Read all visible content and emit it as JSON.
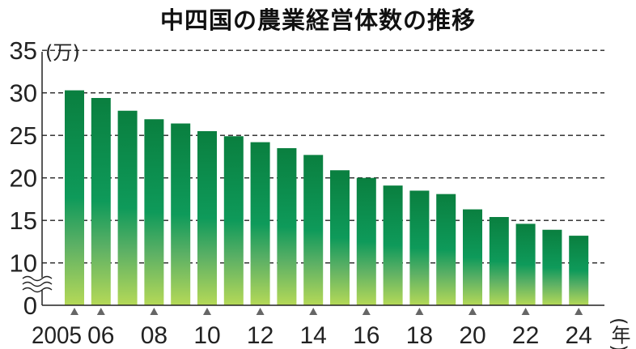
{
  "chart_data": {
    "type": "bar",
    "title": "中四国の農業経営体数の推移",
    "ylabel": "(万)",
    "xlabel": "(年)",
    "categories": [
      "2005",
      "06",
      "07",
      "08",
      "09",
      "10",
      "11",
      "12",
      "13",
      "14",
      "15",
      "16",
      "17",
      "18",
      "19",
      "20",
      "21",
      "22",
      "23",
      "24"
    ],
    "values": [
      30.3,
      29.4,
      27.9,
      26.9,
      26.4,
      25.5,
      24.9,
      24.2,
      23.5,
      22.7,
      20.9,
      20.0,
      19.1,
      18.5,
      18.1,
      16.3,
      15.4,
      14.6,
      13.9,
      13.2
    ],
    "x_tick_labels": [
      "2005",
      "06",
      "08",
      "10",
      "12",
      "14",
      "16",
      "18",
      "20",
      "22",
      "24"
    ],
    "y_ticks": [
      0,
      10,
      15,
      20,
      25,
      30,
      35
    ],
    "ylim": [
      0,
      35
    ],
    "y_axis_break": "between 0 and 10",
    "grid": "dashed horizontal",
    "colors": {
      "bar_top": "#0a7f3f",
      "bar_mid": "#0e9a5a",
      "bar_bottom": "#b5d957"
    }
  }
}
